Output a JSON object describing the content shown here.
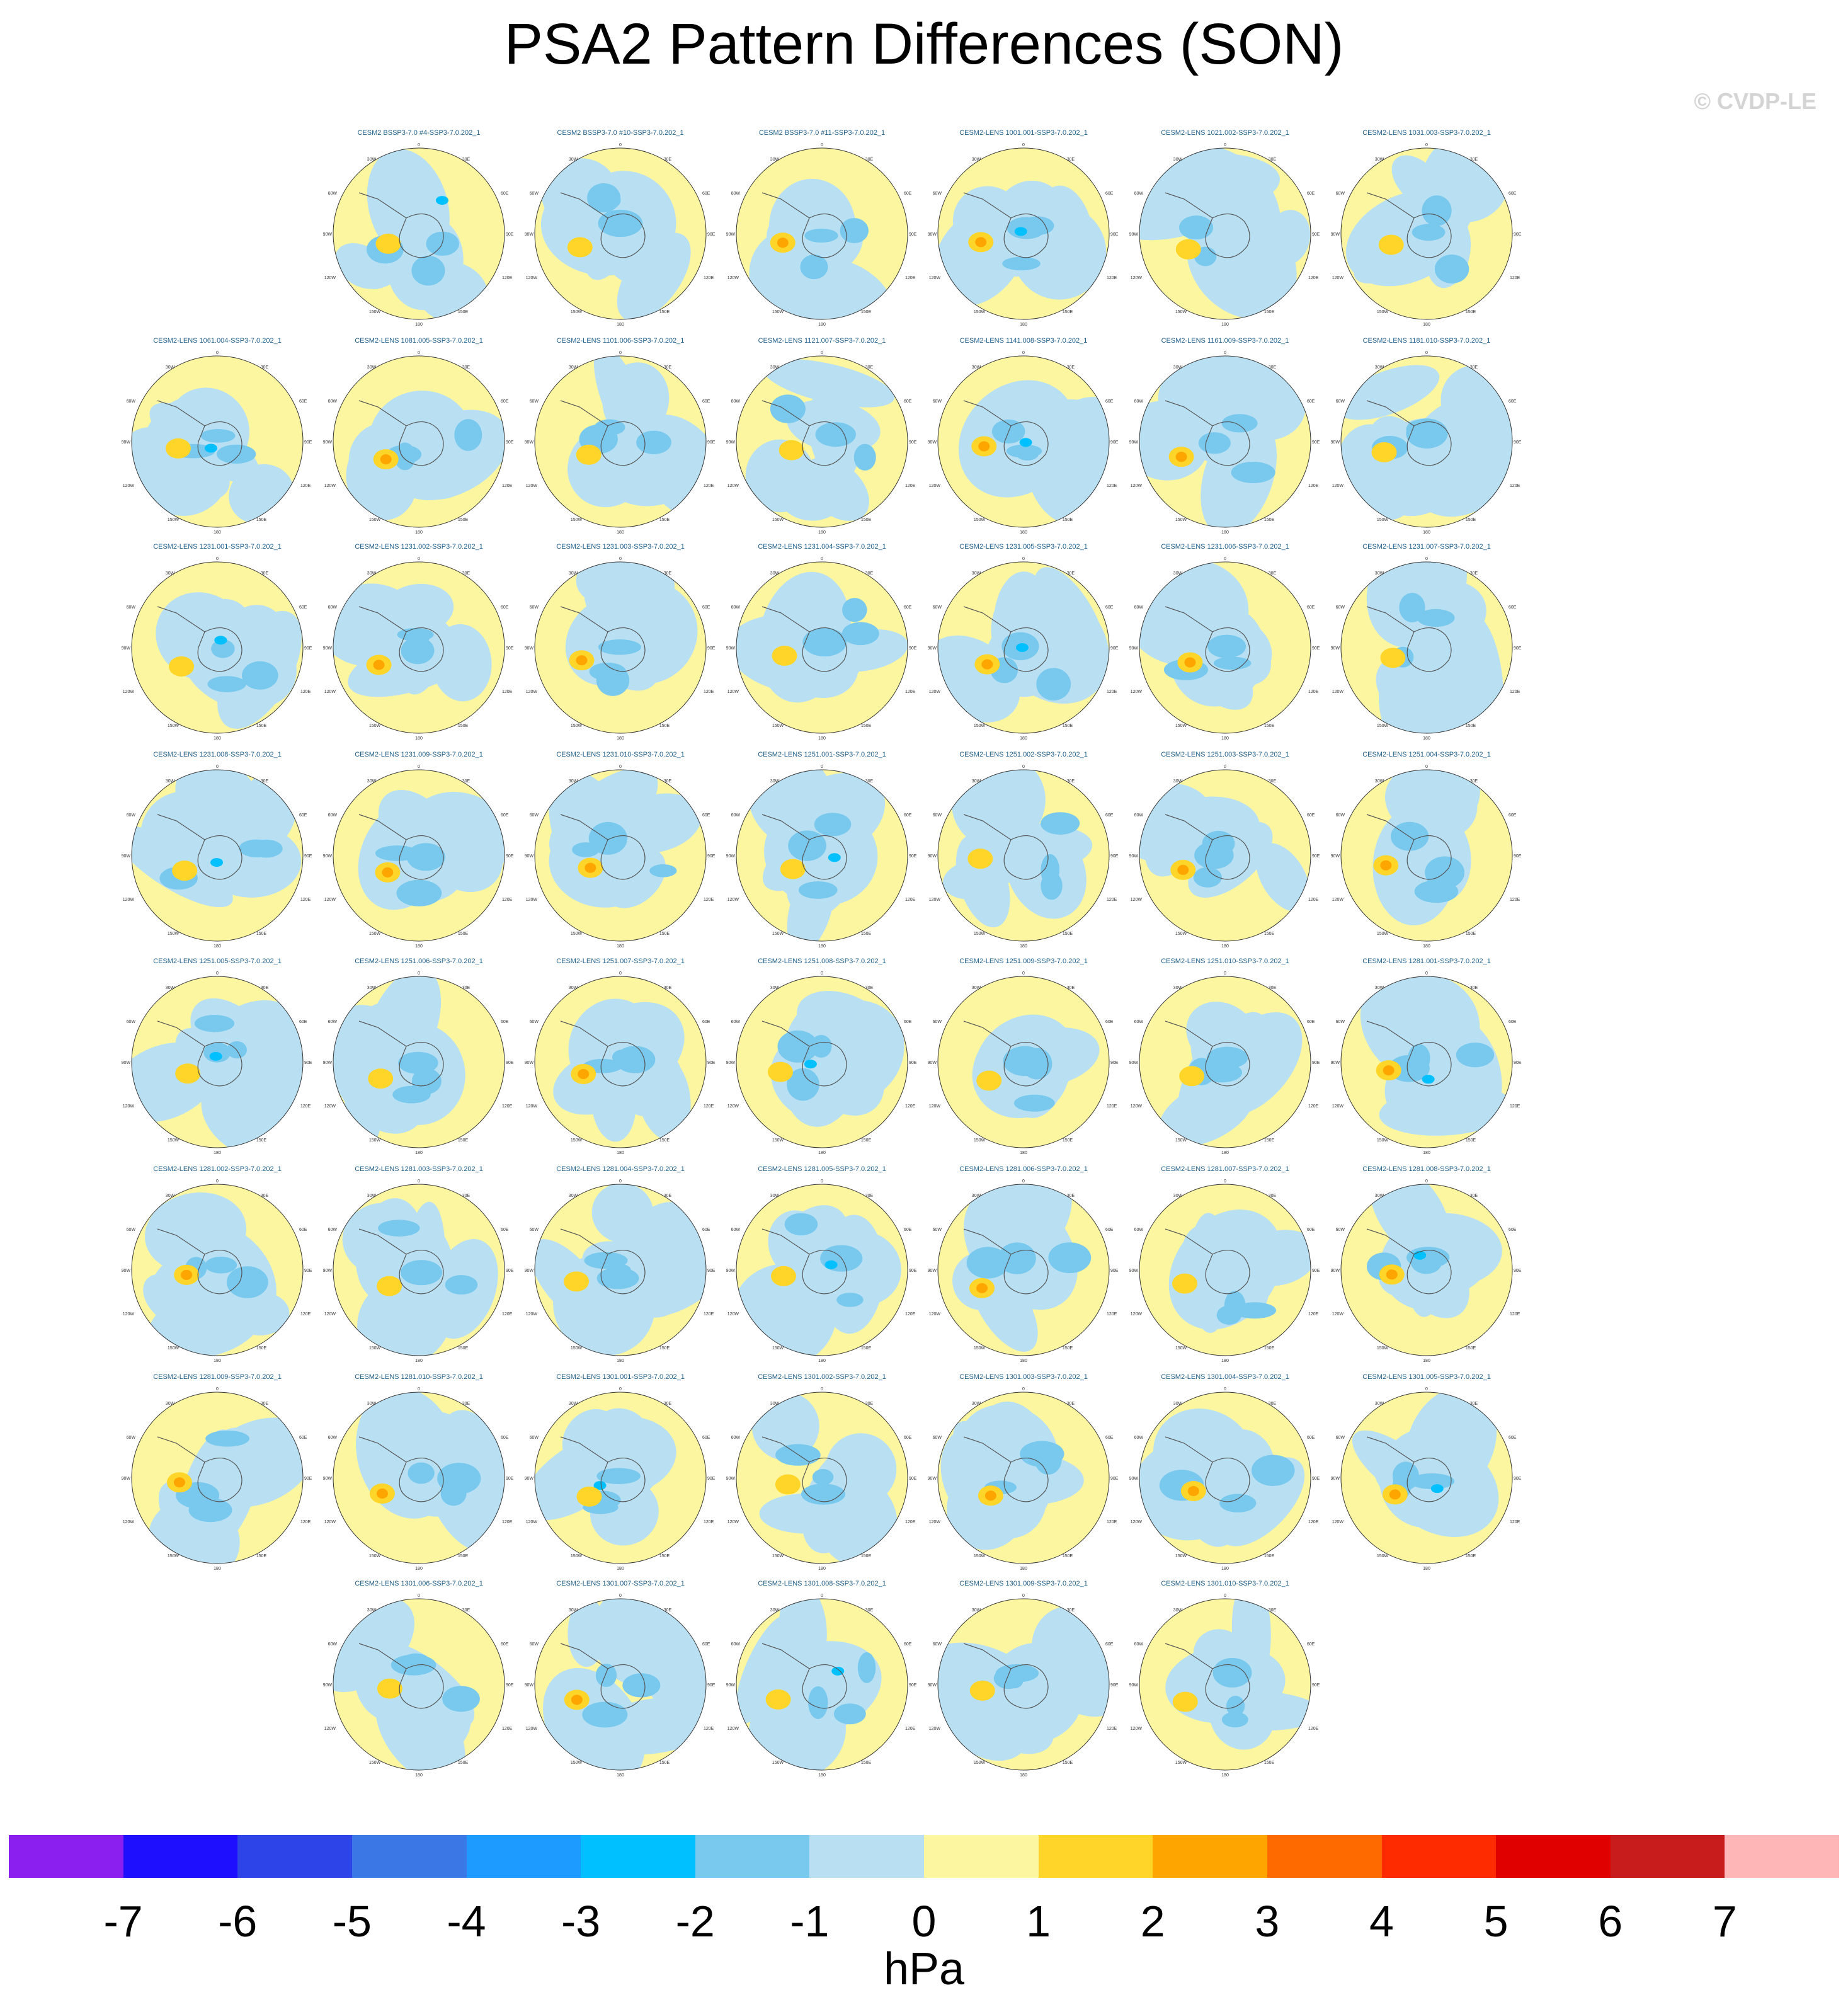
{
  "title": "PSA2 Pattern Differences (SON)",
  "watermark": "© CVDP-LE",
  "colorbar": {
    "units": "hPa",
    "labels": [
      "-7",
      "-6",
      "-5",
      "-4",
      "-3",
      "-2",
      "-1",
      "0",
      "1",
      "2",
      "3",
      "4",
      "5",
      "6",
      "7"
    ],
    "colors": [
      "#8b1ff0",
      "#1f0fff",
      "#2c44e8",
      "#3b78e6",
      "#1e9bff",
      "#00c0ff",
      "#79c8ee",
      "#b8e0f2",
      "#fdf6a0",
      "#ffd52a",
      "#ffa500",
      "#ff6a00",
      "#ff2b00",
      "#e00000",
      "#c81c1c",
      "#ffb6b6"
    ]
  },
  "panel_labels": {
    "lon_top": "0",
    "lon_30w": "30W",
    "lon_30e": "30E",
    "lon_60w": "60W",
    "lon_60e": "60E",
    "lon_90w": "90W",
    "lon_90e": "90E",
    "lon_120w": "120W",
    "lon_120e": "120E",
    "lon_150w": "150W",
    "lon_150e": "150E",
    "lon_bottom": "180"
  },
  "rows": [
    [
      "",
      "CESM2 BSSP3-7.0 #4-SSP3-7.0.202_1",
      "CESM2 BSSP3-7.0 #10-SSP3-7.0.202_1",
      "CESM2 BSSP3-7.0 #11-SSP3-7.0.202_1",
      "CESM2-LENS 1001.001-SSP3-7.0.202_1",
      "CESM2-LENS 1021.002-SSP3-7.0.202_1",
      "CESM2-LENS 1031.003-SSP3-7.0.202_1"
    ],
    [
      "CESM2-LENS 1061.004-SSP3-7.0.202_1",
      "CESM2-LENS 1081.005-SSP3-7.0.202_1",
      "CESM2-LENS 1101.006-SSP3-7.0.202_1",
      "CESM2-LENS 1121.007-SSP3-7.0.202_1",
      "CESM2-LENS 1141.008-SSP3-7.0.202_1",
      "CESM2-LENS 1161.009-SSP3-7.0.202_1",
      "CESM2-LENS 1181.010-SSP3-7.0.202_1"
    ],
    [
      "CESM2-LENS 1231.001-SSP3-7.0.202_1",
      "CESM2-LENS 1231.002-SSP3-7.0.202_1",
      "CESM2-LENS 1231.003-SSP3-7.0.202_1",
      "CESM2-LENS 1231.004-SSP3-7.0.202_1",
      "CESM2-LENS 1231.005-SSP3-7.0.202_1",
      "CESM2-LENS 1231.006-SSP3-7.0.202_1",
      "CESM2-LENS 1231.007-SSP3-7.0.202_1"
    ],
    [
      "CESM2-LENS 1231.008-SSP3-7.0.202_1",
      "CESM2-LENS 1231.009-SSP3-7.0.202_1",
      "CESM2-LENS 1231.010-SSP3-7.0.202_1",
      "CESM2-LENS 1251.001-SSP3-7.0.202_1",
      "CESM2-LENS 1251.002-SSP3-7.0.202_1",
      "CESM2-LENS 1251.003-SSP3-7.0.202_1",
      "CESM2-LENS 1251.004-SSP3-7.0.202_1"
    ],
    [
      "CESM2-LENS 1251.005-SSP3-7.0.202_1",
      "CESM2-LENS 1251.006-SSP3-7.0.202_1",
      "CESM2-LENS 1251.007-SSP3-7.0.202_1",
      "CESM2-LENS 1251.008-SSP3-7.0.202_1",
      "CESM2-LENS 1251.009-SSP3-7.0.202_1",
      "CESM2-LENS 1251.010-SSP3-7.0.202_1",
      "CESM2-LENS 1281.001-SSP3-7.0.202_1"
    ],
    [
      "CESM2-LENS 1281.002-SSP3-7.0.202_1",
      "CESM2-LENS 1281.003-SSP3-7.0.202_1",
      "CESM2-LENS 1281.004-SSP3-7.0.202_1",
      "CESM2-LENS 1281.005-SSP3-7.0.202_1",
      "CESM2-LENS 1281.006-SSP3-7.0.202_1",
      "CESM2-LENS 1281.007-SSP3-7.0.202_1",
      "CESM2-LENS 1281.008-SSP3-7.0.202_1"
    ],
    [
      "CESM2-LENS 1281.009-SSP3-7.0.202_1",
      "CESM2-LENS 1281.010-SSP3-7.0.202_1",
      "CESM2-LENS 1301.001-SSP3-7.0.202_1",
      "CESM2-LENS 1301.002-SSP3-7.0.202_1",
      "CESM2-LENS 1301.003-SSP3-7.0.202_1",
      "CESM2-LENS 1301.004-SSP3-7.0.202_1",
      "CESM2-LENS 1301.005-SSP3-7.0.202_1"
    ],
    [
      "",
      "CESM2-LENS 1301.006-SSP3-7.0.202_1",
      "CESM2-LENS 1301.007-SSP3-7.0.202_1",
      "CESM2-LENS 1301.008-SSP3-7.0.202_1",
      "CESM2-LENS 1301.009-SSP3-7.0.202_1",
      "CESM2-LENS 1301.010-SSP3-7.0.202_1",
      ""
    ]
  ]
}
